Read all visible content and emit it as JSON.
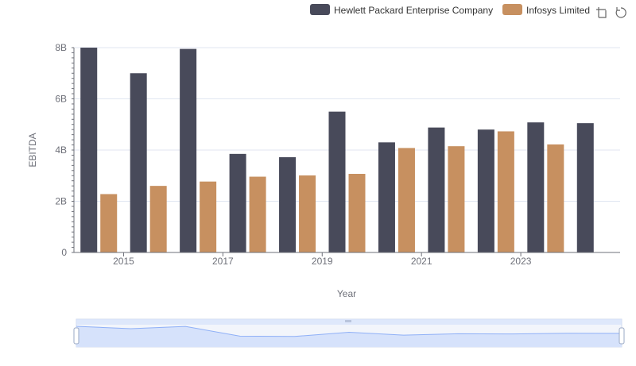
{
  "chart_data": {
    "type": "bar",
    "x": [
      2014,
      2015,
      2016,
      2017,
      2018,
      2019,
      2020,
      2021,
      2022,
      2023,
      2024
    ],
    "x_tick_labels": [
      "2015",
      "2017",
      "2019",
      "2021",
      "2023"
    ],
    "series": [
      {
        "name": "Hewlett Packard Enterprise Company",
        "color": "#484a5a",
        "values": [
          8.0,
          7.0,
          7.95,
          3.85,
          3.72,
          5.5,
          4.3,
          4.88,
          4.8,
          5.08,
          5.05
        ]
      },
      {
        "name": "Infosys Limited",
        "color": "#c79060",
        "values": [
          2.28,
          2.6,
          2.77,
          2.96,
          3.01,
          3.07,
          4.08,
          4.15,
          4.73,
          4.22,
          null
        ]
      }
    ],
    "y_ticks": [
      "0",
      "2B",
      "4B",
      "6B",
      "8B"
    ],
    "ylim": [
      0,
      8
    ],
    "xlabel": "Year",
    "ylabel": "EBITDA",
    "grid": true,
    "legend_position": "top-right"
  },
  "toolbar": {
    "zoom_icon": "zoom-icon",
    "restore_icon": "restore-icon"
  },
  "datazoom": {
    "fill_color": "#d6e2fb",
    "line_color": "#8fb0f7"
  }
}
